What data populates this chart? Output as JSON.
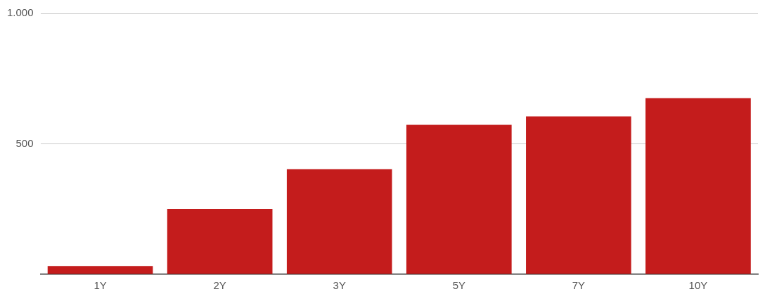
{
  "chart_data": {
    "type": "bar",
    "categories": [
      "1Y",
      "2Y",
      "3Y",
      "5Y",
      "7Y",
      "10Y"
    ],
    "values": [
      32,
      251,
      403,
      573,
      605,
      675
    ],
    "color": "#c41c1c",
    "ylim": [
      0,
      1000
    ],
    "yticks": [
      {
        "value": 0,
        "label": null
      },
      500,
      {
        "value": 1000,
        "label": "1.000"
      }
    ],
    "grid": "y",
    "legend": false
  }
}
